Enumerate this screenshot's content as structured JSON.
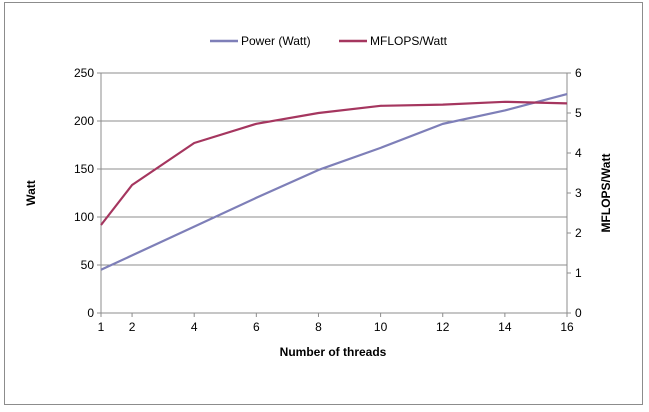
{
  "chart_data": {
    "type": "line",
    "title": "",
    "xlabel": "Number of threads",
    "ylabel": "Watt",
    "y2label": "MFLOPS/Watt",
    "x": [
      1,
      2,
      4,
      6,
      8,
      10,
      12,
      14,
      16
    ],
    "xlim": [
      1,
      16
    ],
    "ylim": [
      0,
      250
    ],
    "y2lim": [
      0,
      6
    ],
    "yticks": [
      "0",
      "50",
      "100",
      "150",
      "200",
      "250"
    ],
    "y2ticks": [
      "0",
      "1",
      "2",
      "3",
      "4",
      "5",
      "6"
    ],
    "xticks": [
      "1",
      "2",
      "4",
      "6",
      "8",
      "10",
      "12",
      "14",
      "16"
    ],
    "grid": true,
    "legend_position": "top",
    "series": [
      {
        "name": "Power (Watt)",
        "axis": "left",
        "color": "#7e7fb8",
        "values": [
          45,
          60,
          90,
          120,
          149,
          172,
          197,
          211,
          228
        ]
      },
      {
        "name": "MFLOPS/Watt",
        "axis": "right",
        "color": "#a5365f",
        "values": [
          2.2,
          3.2,
          4.25,
          4.73,
          5.0,
          5.18,
          5.21,
          5.28,
          5.24
        ]
      }
    ]
  }
}
